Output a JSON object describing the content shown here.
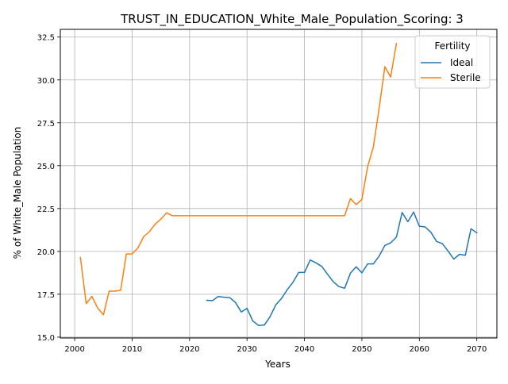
{
  "chart_data": {
    "type": "line",
    "title": "TRUST_IN_EDUCATION_White_Male_Population_Scoring: 3",
    "xlabel": "Years",
    "ylabel": "% of White_Male Population",
    "xlim": [
      1997.5,
      2073.5
    ],
    "ylim": [
      14.95,
      32.95
    ],
    "xticks": [
      2000,
      2010,
      2020,
      2030,
      2040,
      2050,
      2060,
      2070
    ],
    "yticks": [
      15.0,
      17.5,
      20.0,
      22.5,
      25.0,
      27.5,
      30.0,
      32.5
    ],
    "ytick_labels": [
      "15.0",
      "17.5",
      "20.0",
      "22.5",
      "25.0",
      "27.5",
      "30.0",
      "32.5"
    ],
    "grid": true,
    "legend": {
      "title": "Fertility",
      "placement": "top-right"
    },
    "series": [
      {
        "name": "Ideal",
        "color": "#1f77b4",
        "x": [
          2023,
          2024,
          2025,
          2026,
          2027,
          2028,
          2029,
          2030,
          2031,
          2032,
          2033,
          2034,
          2035,
          2036,
          2037,
          2038,
          2039,
          2040,
          2041,
          2042,
          2043,
          2044,
          2045,
          2046,
          2047,
          2048,
          2049,
          2050,
          2051,
          2052,
          2053,
          2054,
          2055,
          2056,
          2057,
          2058,
          2059,
          2060,
          2061,
          2062,
          2063,
          2064,
          2065,
          2066,
          2067,
          2068,
          2069,
          2070
        ],
        "y": [
          17.15,
          17.13,
          17.37,
          17.33,
          17.3,
          17.02,
          16.47,
          16.68,
          15.95,
          15.68,
          15.7,
          16.18,
          16.88,
          17.25,
          17.77,
          18.2,
          18.77,
          18.77,
          19.5,
          19.33,
          19.13,
          18.68,
          18.23,
          17.95,
          17.85,
          18.73,
          19.1,
          18.75,
          19.27,
          19.27,
          19.72,
          20.35,
          20.5,
          20.83,
          22.27,
          21.73,
          22.3,
          21.47,
          21.43,
          21.12,
          20.58,
          20.45,
          20.02,
          19.55,
          19.83,
          19.77,
          21.32,
          21.08
        ]
      },
      {
        "name": "Sterile",
        "color": "#ff7f0e",
        "x": [
          2001,
          2002,
          2003,
          2004,
          2005,
          2006,
          2007,
          2008,
          2009,
          2010,
          2011,
          2012,
          2013,
          2014,
          2015,
          2016,
          2017,
          2018,
          2019,
          2020,
          2021,
          2022,
          2023,
          2024,
          2025,
          2026,
          2027,
          2028,
          2029,
          2030,
          2031,
          2032,
          2033,
          2034,
          2035,
          2036,
          2037,
          2038,
          2039,
          2040,
          2041,
          2042,
          2043,
          2044,
          2045,
          2046,
          2047,
          2048,
          2049,
          2050,
          2051,
          2052,
          2053,
          2054,
          2055,
          2056
        ],
        "y": [
          19.65,
          16.95,
          17.38,
          16.7,
          16.3,
          17.68,
          17.68,
          17.73,
          19.85,
          19.85,
          20.2,
          20.85,
          21.15,
          21.58,
          21.88,
          22.25,
          22.08,
          22.08,
          22.08,
          22.08,
          22.08,
          22.08,
          22.08,
          22.08,
          22.08,
          22.08,
          22.08,
          22.08,
          22.08,
          22.08,
          22.08,
          22.08,
          22.08,
          22.08,
          22.08,
          22.08,
          22.08,
          22.08,
          22.08,
          22.08,
          22.08,
          22.08,
          22.08,
          22.08,
          22.08,
          22.08,
          22.08,
          23.08,
          22.73,
          23.03,
          24.95,
          26.1,
          28.33,
          30.77,
          30.17,
          32.12
        ]
      }
    ]
  }
}
